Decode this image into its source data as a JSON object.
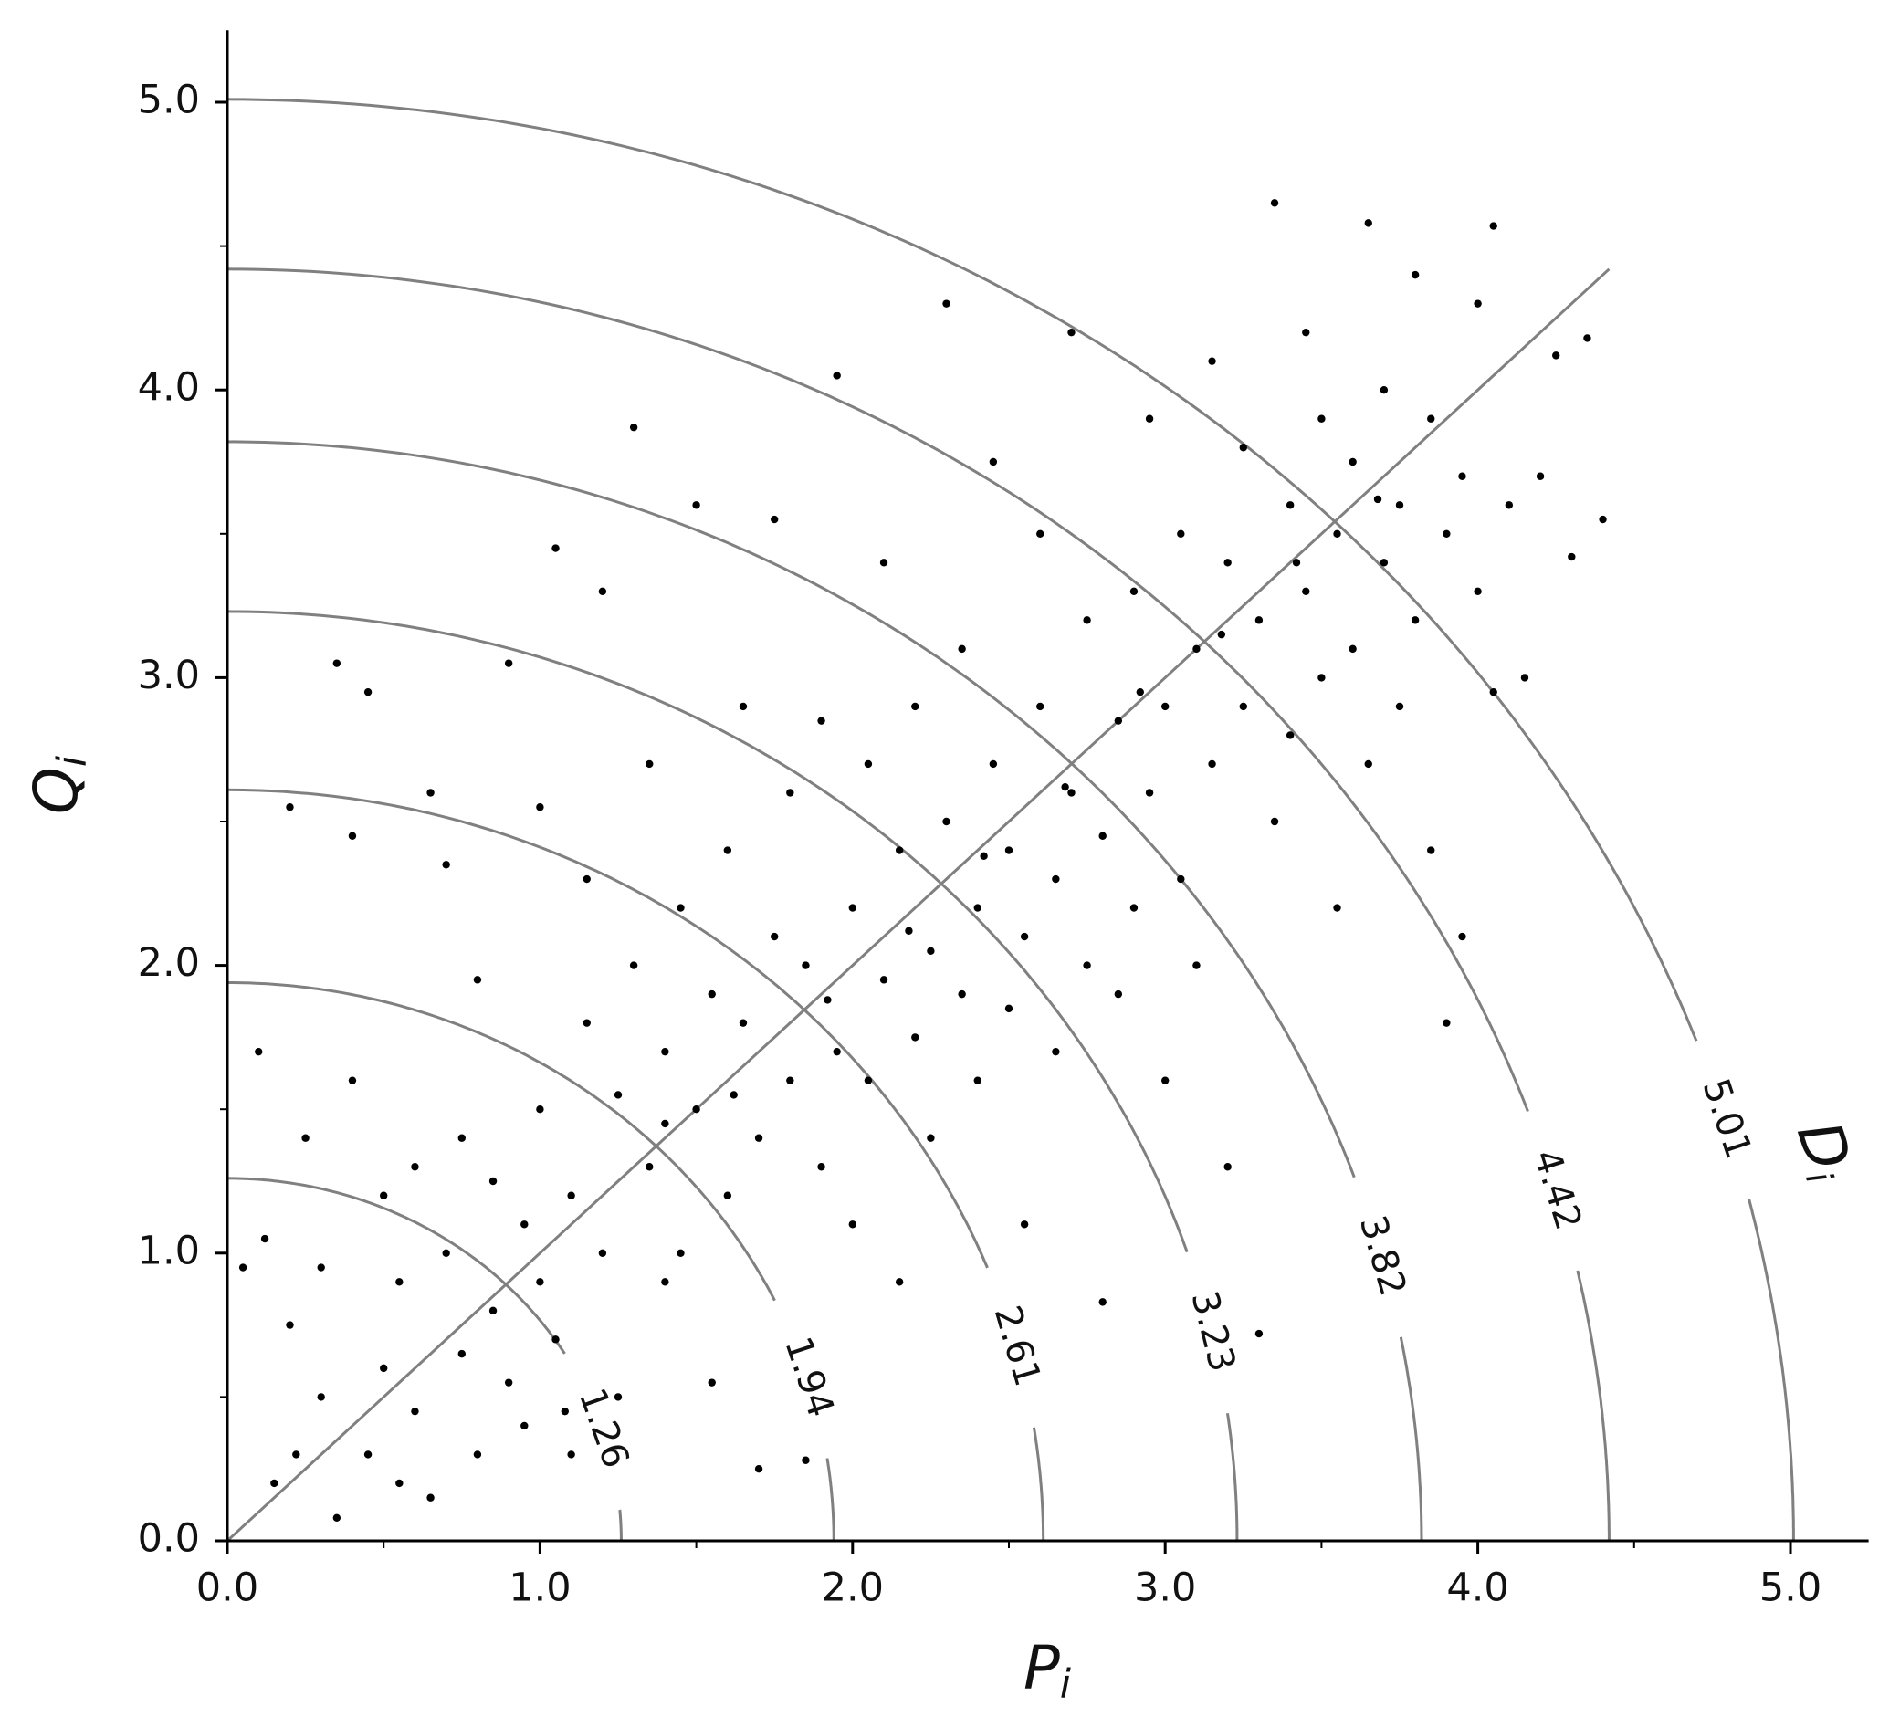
{
  "chart_data": {
    "type": "scatter",
    "x_label": {
      "main": "P",
      "sub": "i"
    },
    "y_label": {
      "main": "Q",
      "sub": "i"
    },
    "xlim": [
      0,
      5.25
    ],
    "ylim": [
      0,
      5.25
    ],
    "xticks": [
      {
        "value": 0,
        "label": "0.0"
      },
      {
        "value": 1,
        "label": "1.0"
      },
      {
        "value": 2,
        "label": "2.0"
      },
      {
        "value": 3,
        "label": "3.0"
      },
      {
        "value": 4,
        "label": "4.0"
      },
      {
        "value": 5,
        "label": "5.0"
      }
    ],
    "yticks": [
      {
        "value": 0,
        "label": "0.0"
      },
      {
        "value": 1,
        "label": "1.0"
      },
      {
        "value": 2,
        "label": "2.0"
      },
      {
        "value": 3,
        "label": "3.0"
      },
      {
        "value": 4,
        "label": "4.0"
      },
      {
        "value": 5,
        "label": "5.0"
      }
    ],
    "minor_ticks": [
      0.5,
      1.5,
      2.5,
      3.5,
      4.5
    ],
    "contours": {
      "label": {
        "main": "D",
        "sub": "i"
      },
      "color": "#808080",
      "levels": [
        1.26,
        1.94,
        2.61,
        3.23,
        3.82,
        4.42,
        5.01
      ]
    },
    "reference_line": {
      "x": [
        0,
        4.42
      ],
      "y": [
        0,
        4.42
      ],
      "color": "#808080"
    },
    "series": [
      {
        "color": "#000000",
        "x": [
          0.05,
          0.1,
          0.15,
          0.2,
          0.2,
          0.25,
          0.3,
          0.3,
          0.35,
          0.35,
          0.4,
          0.4,
          0.45,
          0.45,
          0.5,
          0.5,
          0.55,
          0.6,
          0.6,
          0.65,
          0.65,
          0.7,
          0.7,
          0.75,
          0.8,
          0.8,
          0.85,
          0.85,
          0.9,
          0.9,
          0.95,
          0.95,
          1.0,
          1.0,
          1.0,
          1.05,
          1.05,
          1.1,
          1.1,
          1.15,
          1.15,
          1.2,
          1.2,
          1.25,
          1.25,
          1.3,
          1.3,
          1.35,
          1.35,
          1.4,
          1.4,
          1.45,
          1.45,
          1.5,
          1.5,
          1.55,
          1.55,
          1.6,
          1.6,
          1.65,
          1.65,
          1.7,
          1.7,
          1.75,
          1.75,
          1.8,
          1.8,
          1.85,
          1.85,
          1.9,
          1.9,
          1.95,
          1.95,
          2.0,
          2.0,
          2.05,
          2.05,
          2.1,
          2.1,
          2.15,
          2.15,
          2.2,
          2.2,
          2.25,
          2.25,
          2.3,
          2.3,
          2.35,
          2.35,
          2.4,
          2.4,
          2.45,
          2.45,
          2.5,
          2.5,
          2.55,
          2.55,
          2.6,
          2.6,
          2.65,
          2.65,
          2.7,
          2.7,
          2.75,
          2.75,
          2.8,
          2.8,
          2.85,
          2.85,
          2.9,
          2.9,
          2.95,
          2.95,
          3.0,
          3.0,
          3.05,
          3.05,
          3.1,
          3.1,
          3.15,
          3.15,
          3.2,
          3.2,
          3.25,
          3.25,
          3.3,
          3.3,
          3.35,
          3.35,
          3.4,
          3.4,
          3.45,
          3.45,
          3.5,
          3.5,
          3.55,
          3.55,
          3.6,
          3.6,
          3.65,
          3.65,
          3.7,
          3.7,
          3.75,
          3.75,
          3.8,
          3.8,
          3.85,
          3.85,
          3.9,
          3.9,
          3.95,
          3.95,
          4.0,
          4.0,
          4.05,
          4.05,
          4.1,
          4.15,
          4.2,
          4.25,
          4.3,
          4.35,
          4.4,
          0.12,
          0.22,
          0.55,
          0.75,
          1.08,
          1.4,
          1.62,
          1.92,
          2.18,
          2.42,
          2.68,
          2.92,
          3.18,
          3.42,
          3.68
        ],
        "y": [
          0.95,
          1.7,
          0.2,
          0.75,
          2.55,
          1.4,
          0.5,
          0.95,
          3.05,
          0.08,
          1.6,
          2.45,
          2.95,
          0.3,
          1.2,
          0.6,
          0.9,
          1.3,
          0.45,
          2.6,
          0.15,
          1.0,
          2.35,
          0.65,
          1.95,
          0.3,
          1.25,
          0.8,
          0.55,
          3.05,
          1.1,
          0.4,
          1.5,
          0.9,
          2.55,
          0.7,
          3.45,
          1.2,
          0.3,
          1.8,
          2.3,
          1.0,
          3.3,
          1.55,
          0.5,
          2.0,
          3.87,
          1.3,
          2.7,
          1.7,
          0.9,
          2.2,
          1.0,
          1.5,
          3.6,
          1.9,
          0.55,
          2.4,
          1.2,
          1.8,
          2.9,
          1.4,
          0.25,
          2.1,
          3.55,
          1.6,
          2.6,
          0.28,
          2.0,
          1.3,
          2.85,
          1.7,
          4.05,
          2.2,
          1.1,
          1.6,
          2.7,
          1.95,
          3.4,
          2.4,
          0.9,
          1.75,
          2.9,
          2.05,
          1.4,
          2.5,
          4.3,
          1.9,
          3.1,
          2.2,
          1.6,
          2.7,
          3.75,
          1.85,
          2.4,
          2.1,
          1.1,
          2.9,
          3.5,
          2.3,
          1.7,
          2.6,
          4.2,
          2.0,
          3.2,
          2.45,
          0.83,
          2.85,
          1.9,
          3.3,
          2.2,
          2.6,
          3.9,
          2.9,
          1.6,
          3.5,
          2.3,
          3.1,
          2.0,
          2.7,
          4.1,
          3.4,
          1.3,
          2.9,
          3.8,
          3.2,
          0.72,
          2.5,
          4.65,
          3.6,
          2.8,
          3.3,
          4.2,
          3.0,
          3.9,
          3.5,
          2.2,
          3.75,
          3.1,
          4.58,
          2.7,
          3.4,
          4.0,
          3.6,
          2.9,
          3.2,
          4.4,
          3.9,
          2.4,
          3.5,
          1.8,
          3.7,
          2.1,
          3.3,
          4.3,
          4.57,
          2.95,
          3.6,
          3.0,
          3.7,
          4.12,
          3.42,
          4.18,
          3.55,
          1.05,
          0.3,
          0.2,
          1.4,
          0.45,
          1.45,
          1.55,
          1.88,
          2.12,
          2.38,
          2.62,
          2.95,
          3.15,
          3.4,
          3.62
        ]
      }
    ]
  }
}
